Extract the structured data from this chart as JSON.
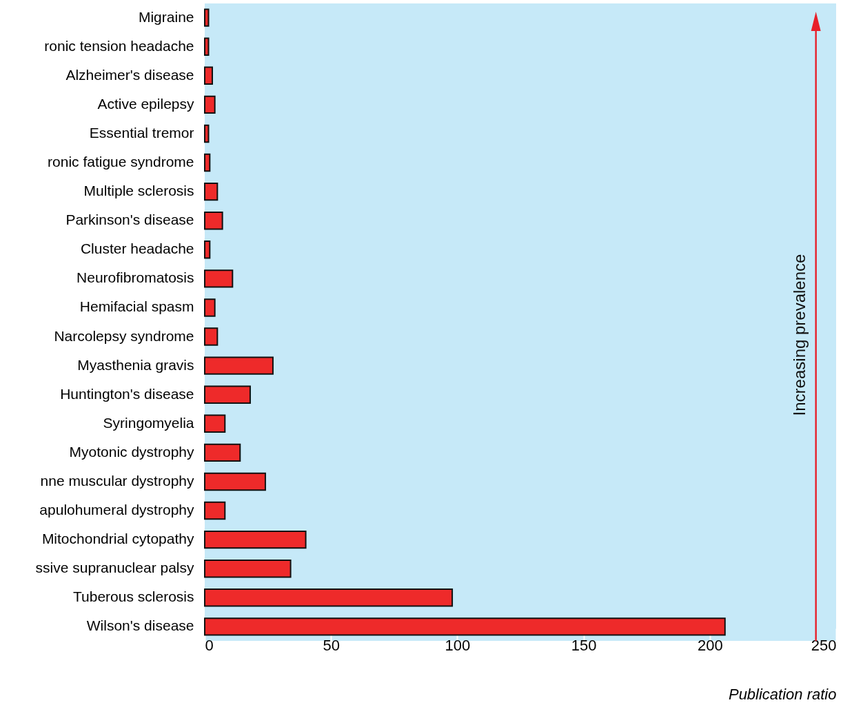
{
  "chart_data": {
    "type": "bar",
    "orientation": "horizontal",
    "xlabel": "Publication ratio",
    "categories": [
      "Migraine",
      "ronic tension headache",
      "Alzheimer's disease",
      "Active epilepsy",
      "Essential tremor",
      "ronic fatigue syndrome",
      "Multiple sclerosis",
      "Parkinson's disease",
      "Cluster headache",
      "Neurofibromatosis",
      "Hemifacial spasm",
      "Narcolepsy syndrome",
      "Myasthenia gravis",
      "Huntington's disease",
      "Syringomyelia",
      "Myotonic dystrophy",
      "nne muscular dystrophy",
      "apulohumeral dystrophy",
      "Mitochondrial cytopathy",
      "ssive supranuclear palsy",
      "Tuberous sclerosis",
      "Wilson's disease"
    ],
    "values": [
      1.5,
      1.5,
      3,
      4,
      1.5,
      2,
      5,
      7,
      2,
      11,
      4,
      5,
      27,
      18,
      8,
      14,
      24,
      8,
      40,
      34,
      98,
      206
    ],
    "color": "#ee2a2a",
    "xlim": [
      0,
      250
    ],
    "xticks": [
      0,
      50,
      100,
      150,
      200,
      250
    ],
    "annotations": [
      "Increasing prevalence"
    ]
  }
}
